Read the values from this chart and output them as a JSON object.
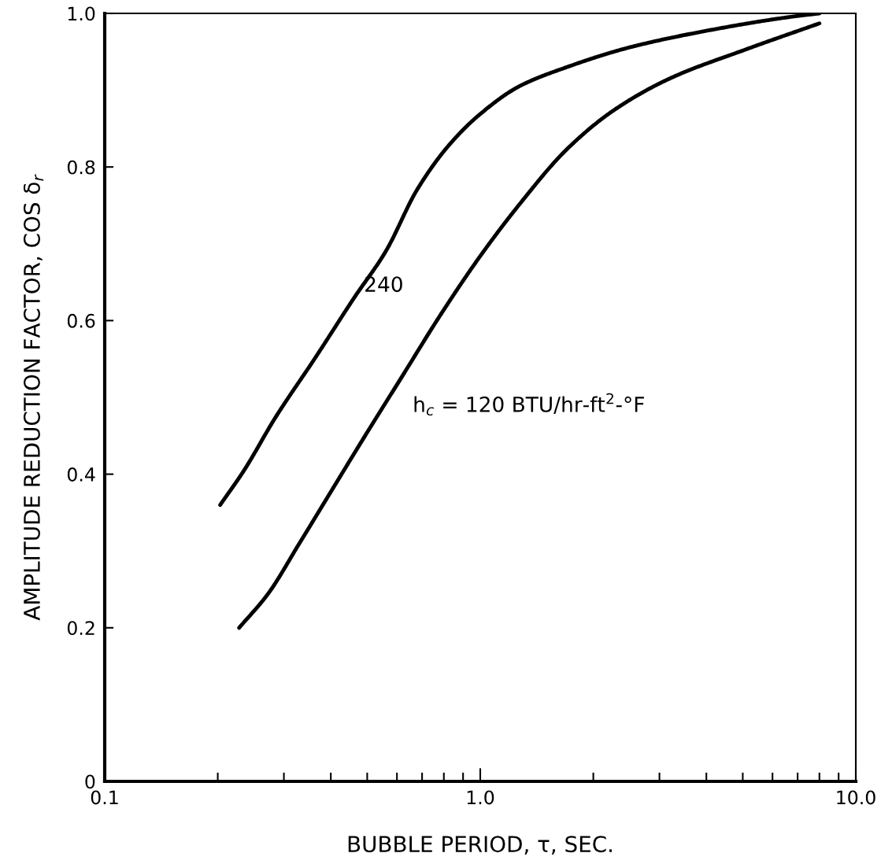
{
  "chart_data": {
    "type": "line",
    "xlabel": "BUBBLE PERIOD, τ, SEC.",
    "ylabel": "AMPLITUDE REDUCTION FACTOR, COS δ$_{r}$",
    "log": "x",
    "xlim": [
      0.1,
      10.0
    ],
    "ylim": [
      0,
      1.0
    ],
    "xticks": [
      {
        "value": 0.1,
        "label": "0.1"
      },
      {
        "value": 0.2,
        "label": null
      },
      {
        "value": 0.3,
        "label": null
      },
      {
        "value": 0.4,
        "label": null
      },
      {
        "value": 0.5,
        "label": null
      },
      {
        "value": 0.6,
        "label": null
      },
      {
        "value": 0.7,
        "label": null
      },
      {
        "value": 0.8,
        "label": null
      },
      {
        "value": 0.9,
        "label": null
      },
      {
        "value": 1,
        "label": "1.0"
      },
      {
        "value": 2,
        "label": null
      },
      {
        "value": 3,
        "label": null
      },
      {
        "value": 4,
        "label": null
      },
      {
        "value": 5,
        "label": null
      },
      {
        "value": 6,
        "label": null
      },
      {
        "value": 7,
        "label": null
      },
      {
        "value": 8,
        "label": null
      },
      {
        "value": 9,
        "label": null
      },
      {
        "value": 10,
        "label": "10.0"
      }
    ],
    "yticks": [
      0,
      0.2,
      0.4,
      0.6,
      0.8,
      {
        "value": 1,
        "label": "1.0"
      }
    ],
    "grid": false,
    "series": [
      {
        "color": "#000000",
        "x": [
          0.203,
          0.235,
          0.285,
          0.363,
          0.462,
          0.56,
          0.68,
          0.824,
          1.0,
          1.27,
          1.7,
          2.51,
          4.07,
          6.6,
          8.0
        ],
        "values": [
          0.36,
          0.405,
          0.474,
          0.551,
          0.63,
          0.69,
          0.771,
          0.828,
          0.869,
          0.905,
          0.93,
          0.956,
          0.978,
          0.995,
          1.0
        ]
      },
      {
        "color": "#000000",
        "x": [
          0.228,
          0.272,
          0.33,
          0.4,
          0.485,
          0.617,
          0.785,
          1.0,
          1.27,
          1.7,
          2.27,
          3.19,
          5.16,
          8.0
        ],
        "values": [
          0.2,
          0.244,
          0.31,
          0.377,
          0.444,
          0.526,
          0.608,
          0.684,
          0.751,
          0.823,
          0.874,
          0.915,
          0.954,
          0.987
        ]
      }
    ],
    "annotations": [
      {
        "text": "240",
        "x": 0.49,
        "y": 0.645
      },
      "h$_{c}$ = 120 BTU/hr-ft$^{2}$-°F"
    ]
  }
}
